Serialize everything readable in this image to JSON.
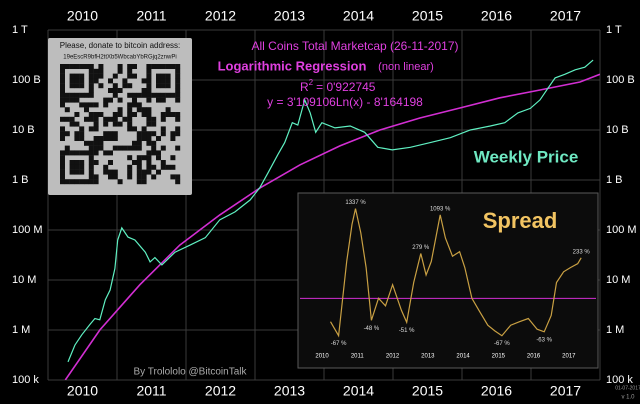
{
  "chart_data": [
    {
      "type": "line",
      "title": "All Coins Total Marketcap   (26-11-2017)",
      "subtitle": "Logarithmic Regression",
      "subtitle_note": "(non linear)",
      "r2_symbol": "R",
      "r2_exponent": "2",
      "r2_value": "= 0'922745",
      "formula": "y = 3'109106Ln(x) - 8'164198",
      "qr_caption": "Please, donate to bitcoin address:",
      "qr_address": "19eEscR9bfH2ttXb5WbcabYbRGjq2znwPi",
      "credit": "By Trolololo @BitcoinTalk",
      "date_stamp": "01-07-2017",
      "version": "v 1.0",
      "log_y": true,
      "grid": true,
      "xlim": [
        2010,
        2018
      ],
      "xticks": [
        {
          "value": 2010.5,
          "label": "2010"
        },
        {
          "value": 2011.5,
          "label": "2011"
        },
        {
          "value": 2012.5,
          "label": "2012"
        },
        {
          "value": 2013.5,
          "label": "2013"
        },
        {
          "value": 2014.5,
          "label": "2014"
        },
        {
          "value": 2015.5,
          "label": "2015"
        },
        {
          "value": 2016.5,
          "label": "2016"
        },
        {
          "value": 2017.5,
          "label": "2017"
        }
      ],
      "ylim": [
        100000,
        1000000000000
      ],
      "yticks": [
        {
          "value": 1000000000000,
          "label": "1 T"
        },
        {
          "value": 100000000000,
          "label": "100 B"
        },
        {
          "value": 10000000000,
          "label": "10 B"
        },
        {
          "value": 1000000000,
          "label": "1 B"
        },
        {
          "value": 100000000,
          "label": "100 M"
        },
        {
          "value": 10000000,
          "label": "10 M"
        },
        {
          "value": 1000000,
          "label": "1 M"
        },
        {
          "value": 100000,
          "label": "100 k"
        }
      ],
      "series": [
        {
          "name": "Weekly Price",
          "color": "#5ff0c2",
          "x": [
            2010.29,
            2010.39,
            2010.49,
            2010.61,
            2010.68,
            2010.75,
            2010.83,
            2010.9,
            2010.97,
            2011.01,
            2011.07,
            2011.16,
            2011.26,
            2011.41,
            2011.48,
            2011.55,
            2011.65,
            2011.84,
            2012.06,
            2012.28,
            2012.49,
            2012.71,
            2012.93,
            2013.07,
            2013.19,
            2013.33,
            2013.43,
            2013.54,
            2013.62,
            2013.72,
            2013.8,
            2013.88,
            2013.97,
            2014.16,
            2014.38,
            2014.59,
            2014.78,
            2014.99,
            2015.25,
            2015.54,
            2015.83,
            2016.12,
            2016.41,
            2016.62,
            2016.81,
            2016.99,
            2017.13,
            2017.25,
            2017.35,
            2017.49,
            2017.64,
            2017.78,
            2017.9
          ],
          "values": [
            230000,
            500000,
            800000,
            1300000,
            1700000,
            1600000,
            4000000,
            6300000,
            17000000,
            63000000,
            110000000,
            72000000,
            63000000,
            36000000,
            23000000,
            28000000,
            20000000,
            36000000,
            50000000,
            70000000,
            160000000,
            230000000,
            400000000,
            700000000,
            1400000000,
            3200000000,
            5600000000,
            14000000000,
            12600000000,
            40000000000,
            22000000000,
            9000000000,
            14000000000,
            11000000000,
            12000000000,
            9000000000,
            4500000000,
            4000000000,
            4500000000,
            5600000000,
            7000000000,
            10000000000,
            12000000000,
            14000000000,
            22000000000,
            27000000000,
            40000000000,
            70000000000,
            110000000000,
            130000000000,
            160000000000,
            180000000000,
            250000000000
          ]
        }
      ],
      "regression": {
        "color": "#d22ed2",
        "x": [
          2010.25,
          2010.75,
          2011.33,
          2011.91,
          2012.49,
          2013.07,
          2013.65,
          2014.23,
          2014.81,
          2015.39,
          2015.97,
          2016.55,
          2017.13,
          2017.71,
          2018.0
        ],
        "values": [
          100000,
          1000000,
          8000000,
          50000000,
          200000000,
          690000000,
          2000000000,
          4800000000,
          10000000000,
          17400000000,
          27500000000,
          44000000000,
          63000000000,
          91000000000,
          130000000000
        ]
      }
    },
    {
      "type": "line",
      "title": "Spread",
      "xlim": [
        2010.3,
        2018.1
      ],
      "xticks": [
        {
          "value": 2010.5,
          "label": "2010"
        },
        {
          "value": 2011.5,
          "label": "2011"
        },
        {
          "value": 2012.5,
          "label": "2012"
        },
        {
          "value": 2013.5,
          "label": "2013"
        },
        {
          "value": 2014.5,
          "label": "2014"
        },
        {
          "value": 2015.5,
          "label": "2015"
        },
        {
          "value": 2016.5,
          "label": "2016"
        },
        {
          "value": 2017.5,
          "label": "2017"
        }
      ],
      "ylim": [
        -75,
        1500
      ],
      "log_ratio_y": true,
      "hline": 0,
      "hline_color": "#d22ed2",
      "series": [
        {
          "color": "#c9a043",
          "x": [
            2010.74,
            2010.97,
            2011.2,
            2011.35,
            2011.45,
            2011.6,
            2011.75,
            2011.9,
            2012.1,
            2012.3,
            2012.5,
            2012.75,
            2012.9,
            2013.1,
            2013.3,
            2013.45,
            2013.6,
            2013.85,
            2014.0,
            2014.2,
            2014.4,
            2014.55,
            2014.75,
            2014.95,
            2015.2,
            2015.4,
            2015.6,
            2015.85,
            2016.1,
            2016.35,
            2016.6,
            2016.8,
            2017.0,
            2017.15,
            2017.35,
            2017.55,
            2017.75,
            2017.85
          ],
          "values": [
            -50,
            -67,
            200,
            800,
            1337,
            600,
            150,
            -48,
            0,
            -20,
            50,
            -30,
            -51,
            60,
            279,
            100,
            200,
            1093,
            500,
            250,
            300,
            150,
            0,
            -30,
            -55,
            -62,
            -67,
            -55,
            -50,
            -45,
            -60,
            -63,
            -40,
            60,
            120,
            150,
            180,
            233
          ]
        }
      ],
      "annotations": [
        {
          "x": 2011.45,
          "y": 1337,
          "label": "1337 %"
        },
        {
          "x": 2013.3,
          "y": 279,
          "label": "279 %"
        },
        {
          "x": 2013.85,
          "y": 1093,
          "label": "1093 %"
        },
        {
          "x": 2017.85,
          "y": 233,
          "label": "233 %"
        },
        {
          "x": 2010.97,
          "y": -67,
          "label": "-67 %"
        },
        {
          "x": 2011.9,
          "y": -48,
          "label": "-48 %"
        },
        {
          "x": 2012.9,
          "y": -51,
          "label": "-51 %"
        },
        {
          "x": 2015.6,
          "y": -67,
          "label": "-67 %"
        },
        {
          "x": 2016.8,
          "y": -63,
          "label": "-63 %"
        }
      ]
    }
  ]
}
